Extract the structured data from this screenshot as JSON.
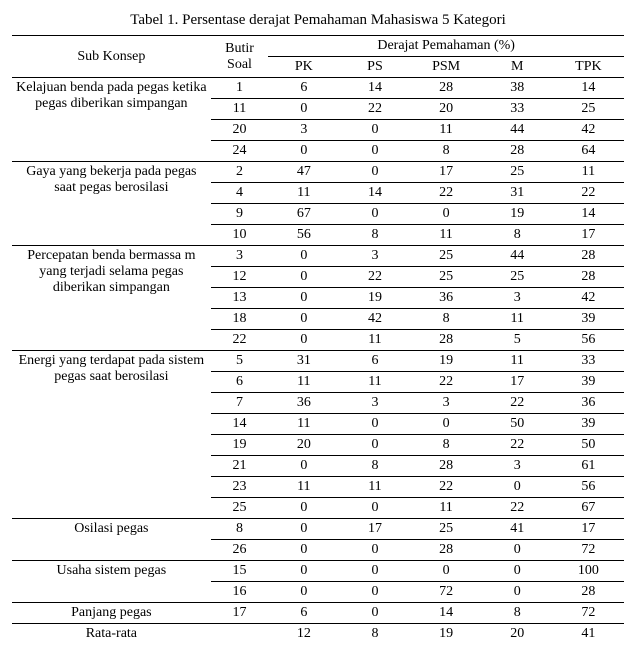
{
  "title": "Tabel 1. Persentase derajat Pemahaman Mahasiswa 5 Kategori",
  "headers": {
    "sub": "Sub Konsep",
    "butir": "Butir Soal",
    "derajat": "Derajat Pemahaman (%)",
    "cols": [
      "PK",
      "PS",
      "PSM",
      "M",
      "TPK"
    ]
  },
  "groups": [
    {
      "label": "Kelajuan benda pada pegas ketika pegas diberikan simpangan",
      "rows": [
        {
          "n": "1",
          "v": [
            "6",
            "14",
            "28",
            "38",
            "14"
          ]
        },
        {
          "n": "11",
          "v": [
            "0",
            "22",
            "20",
            "33",
            "25"
          ]
        },
        {
          "n": "20",
          "v": [
            "3",
            "0",
            "11",
            "44",
            "42"
          ]
        },
        {
          "n": "24",
          "v": [
            "0",
            "0",
            "8",
            "28",
            "64"
          ]
        }
      ]
    },
    {
      "label": "Gaya yang bekerja pada pegas saat pegas berosilasi",
      "rows": [
        {
          "n": "2",
          "v": [
            "47",
            "0",
            "17",
            "25",
            "11"
          ]
        },
        {
          "n": "4",
          "v": [
            "11",
            "14",
            "22",
            "31",
            "22"
          ]
        },
        {
          "n": "9",
          "v": [
            "67",
            "0",
            "0",
            "19",
            "14"
          ]
        },
        {
          "n": "10",
          "v": [
            "56",
            "8",
            "11",
            "8",
            "17"
          ]
        }
      ]
    },
    {
      "label": "Percepatan benda bermassa m yang terjadi selama pegas diberikan simpangan",
      "rows": [
        {
          "n": "3",
          "v": [
            "0",
            "3",
            "25",
            "44",
            "28"
          ]
        },
        {
          "n": "12",
          "v": [
            "0",
            "22",
            "25",
            "25",
            "28"
          ]
        },
        {
          "n": "13",
          "v": [
            "0",
            "19",
            "36",
            "3",
            "42"
          ]
        },
        {
          "n": "18",
          "v": [
            "0",
            "42",
            "8",
            "11",
            "39"
          ]
        },
        {
          "n": "22",
          "v": [
            "0",
            "11",
            "28",
            "5",
            "56"
          ]
        }
      ]
    },
    {
      "label": "Energi yang terdapat pada sistem pegas saat berosilasi",
      "rows": [
        {
          "n": "5",
          "v": [
            "31",
            "6",
            "19",
            "11",
            "33"
          ]
        },
        {
          "n": "6",
          "v": [
            "11",
            "11",
            "22",
            "17",
            "39"
          ]
        },
        {
          "n": "7",
          "v": [
            "36",
            "3",
            "3",
            "22",
            "36"
          ]
        },
        {
          "n": "14",
          "v": [
            "11",
            "0",
            "0",
            "50",
            "39"
          ]
        },
        {
          "n": "19",
          "v": [
            "20",
            "0",
            "8",
            "22",
            "50"
          ]
        },
        {
          "n": "21",
          "v": [
            "0",
            "8",
            "28",
            "3",
            "61"
          ]
        },
        {
          "n": "23",
          "v": [
            "11",
            "11",
            "22",
            "0",
            "56"
          ]
        },
        {
          "n": "25",
          "v": [
            "0",
            "0",
            "11",
            "22",
            "67"
          ]
        }
      ]
    },
    {
      "label": "Osilasi pegas",
      "rows": [
        {
          "n": "8",
          "v": [
            "0",
            "17",
            "25",
            "41",
            "17"
          ]
        },
        {
          "n": "26",
          "v": [
            "0",
            "0",
            "28",
            "0",
            "72"
          ]
        }
      ]
    },
    {
      "label": "Usaha sistem pegas",
      "rows": [
        {
          "n": "15",
          "v": [
            "0",
            "0",
            "0",
            "0",
            "100"
          ]
        },
        {
          "n": "16",
          "v": [
            "0",
            "0",
            "72",
            "0",
            "28"
          ]
        }
      ]
    },
    {
      "label": "Panjang pegas",
      "rows": [
        {
          "n": "17",
          "v": [
            "6",
            "0",
            "14",
            "8",
            "72"
          ]
        }
      ]
    }
  ],
  "footer": {
    "label": "Rata-rata",
    "v": [
      "12",
      "8",
      "19",
      "20",
      "41"
    ]
  }
}
